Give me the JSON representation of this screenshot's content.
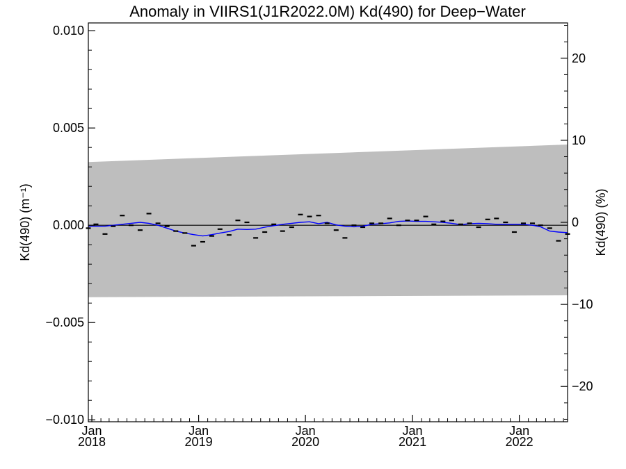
{
  "chart_data": {
    "type": "line",
    "title": "Anomaly in VIIRS1(J1R2022.0M) Kd(490) for Deep−Water",
    "ylabel_left": "Kd(490) (m⁻¹)",
    "ylabel_right": "Kd(490) (%)",
    "xlabel": "",
    "xlim": [
      "2017-12-20",
      "2022-06-15"
    ],
    "ylim_left": [
      -0.0101,
      0.0104
    ],
    "ylim_right": [
      -24.3,
      24.3
    ],
    "x_tick_dates": [
      "2018-01-01",
      "2019-01-01",
      "2020-01-01",
      "2021-01-01",
      "2022-01-01"
    ],
    "x_tick_labels": [
      {
        "month": "Jan",
        "year": "2018"
      },
      {
        "month": "Jan",
        "year": "2019"
      },
      {
        "month": "Jan",
        "year": "2020"
      },
      {
        "month": "Jan",
        "year": "2021"
      },
      {
        "month": "Jan",
        "year": "2022"
      }
    ],
    "y_left_ticks": [
      0.01,
      0.005,
      0.0,
      -0.005,
      -0.01
    ],
    "y_left_tick_labels": [
      "0.010",
      "0.005",
      "0.000",
      "−0.005",
      "−0.010"
    ],
    "y_right_ticks": [
      20,
      10,
      0,
      -10,
      -20
    ],
    "y_right_tick_labels": [
      "20",
      "10",
      "0",
      "−10",
      "−20"
    ],
    "band": {
      "name": "",
      "x": [
        "2017-12-20",
        "2022-06-15"
      ],
      "upper": [
        0.00325,
        0.00415
      ],
      "lower": [
        -0.0037,
        -0.0036
      ]
    },
    "series": [
      {
        "name": "",
        "style": "dash-markers",
        "x": [
          "2017-12-15",
          "2018-01-15",
          "2018-02-15",
          "2018-03-15",
          "2018-04-15",
          "2018-05-15",
          "2018-06-15",
          "2018-07-15",
          "2018-08-15",
          "2018-09-15",
          "2018-10-15",
          "2018-11-15",
          "2018-12-15",
          "2019-01-15",
          "2019-02-15",
          "2019-03-15",
          "2019-04-15",
          "2019-05-15",
          "2019-06-15",
          "2019-07-15",
          "2019-08-15",
          "2019-09-15",
          "2019-10-15",
          "2019-11-15",
          "2019-12-15",
          "2020-01-15",
          "2020-02-15",
          "2020-03-15",
          "2020-04-15",
          "2020-05-15",
          "2020-06-15",
          "2020-07-15",
          "2020-08-15",
          "2020-09-15",
          "2020-10-15",
          "2020-11-15",
          "2020-12-15",
          "2021-01-15",
          "2021-02-15",
          "2021-03-15",
          "2021-04-15",
          "2021-05-15",
          "2021-06-15",
          "2021-07-15",
          "2021-08-15",
          "2021-09-15",
          "2021-10-15",
          "2021-11-15",
          "2021-12-15",
          "2022-01-15",
          "2022-02-15",
          "2022-03-15",
          "2022-04-15",
          "2022-05-15",
          "2022-06-15"
        ],
        "values": [
          -0.00015,
          5e-05,
          -0.00045,
          -5e-05,
          0.0005,
          0.0,
          -0.00025,
          0.0006,
          0.0001,
          -5e-05,
          -0.0003,
          -0.0004,
          -0.00105,
          -0.00085,
          -0.00055,
          -0.0002,
          -0.0005,
          0.00025,
          0.00015,
          -0.00065,
          -0.00035,
          5e-05,
          -0.0003,
          -0.0001,
          0.00055,
          0.00045,
          0.0005,
          0.0001,
          -0.00025,
          -0.00065,
          0.0,
          -0.0001,
          0.0001,
          0.0001,
          0.00035,
          0.0,
          0.00025,
          0.00025,
          0.00045,
          5e-05,
          0.0002,
          0.00025,
          5e-05,
          0.0001,
          -0.0001,
          0.0003,
          0.00035,
          0.00015,
          -0.00035,
          0.0001,
          0.0001,
          0.0,
          -0.00015,
          -0.0008,
          -0.00045
        ]
      },
      {
        "name": "",
        "style": "line",
        "color": "#0000ff",
        "x": [
          "2017-12-15",
          "2018-01-15",
          "2018-02-15",
          "2018-03-15",
          "2018-04-15",
          "2018-05-15",
          "2018-06-15",
          "2018-07-15",
          "2018-08-15",
          "2018-09-15",
          "2018-10-15",
          "2018-11-15",
          "2018-12-15",
          "2019-01-15",
          "2019-02-15",
          "2019-03-15",
          "2019-04-15",
          "2019-05-15",
          "2019-06-15",
          "2019-07-15",
          "2019-08-15",
          "2019-09-15",
          "2019-10-15",
          "2019-11-15",
          "2019-12-15",
          "2020-01-15",
          "2020-02-15",
          "2020-03-15",
          "2020-04-15",
          "2020-05-15",
          "2020-06-15",
          "2020-07-15",
          "2020-08-15",
          "2020-09-15",
          "2020-10-15",
          "2020-11-15",
          "2020-12-15",
          "2021-01-15",
          "2021-02-15",
          "2021-03-15",
          "2021-04-15",
          "2021-05-15",
          "2021-06-15",
          "2021-07-15",
          "2021-08-15",
          "2021-09-15",
          "2021-10-15",
          "2021-11-15",
          "2021-12-15",
          "2022-01-15",
          "2022-02-15",
          "2022-03-15",
          "2022-04-15",
          "2022-05-15",
          "2022-06-15"
        ],
        "values": [
          -5e-05,
          -5e-05,
          -5e-05,
          0.0,
          5e-05,
          0.0001,
          0.00015,
          0.0001,
          0.0,
          -0.00015,
          -0.0003,
          -0.0004,
          -0.00048,
          -0.00055,
          -0.00048,
          -0.0004,
          -0.00032,
          -0.0002,
          -0.00022,
          -0.0002,
          -0.0001,
          -2e-05,
          5e-05,
          0.0001,
          0.00015,
          0.00018,
          8e-05,
          0.00015,
          2e-05,
          -5e-05,
          -8e-05,
          -5e-05,
          5e-05,
          8e-05,
          0.00012,
          0.0002,
          0.00022,
          0.0002,
          0.0002,
          0.00018,
          0.00015,
          0.0001,
          3e-05,
          8e-05,
          0.0001,
          8e-05,
          5e-05,
          5e-05,
          5e-05,
          5e-05,
          0.0,
          -8e-05,
          -0.0003,
          -0.00035,
          -0.00038
        ]
      }
    ],
    "zero_line": true,
    "grid": false,
    "legend": "none"
  }
}
